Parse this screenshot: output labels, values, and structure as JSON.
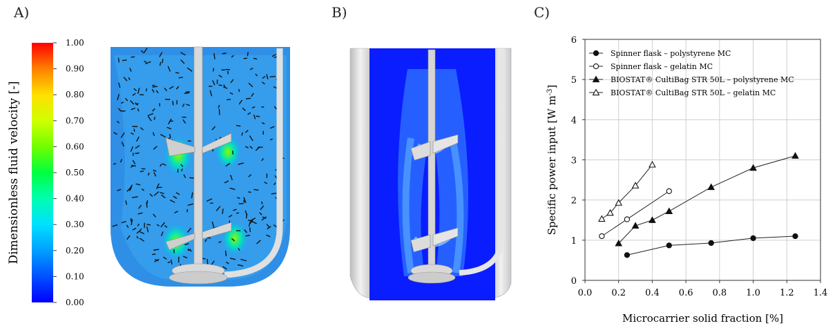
{
  "panels": {
    "a_label": "A)",
    "b_label": "B)",
    "c_label": "C)"
  },
  "colorbar": {
    "title": "Dimensionless fluid velocity [-]",
    "ticks": [
      "1.00",
      "0.90",
      "0.80",
      "0.70",
      "0.60",
      "0.50",
      "0.40",
      "0.30",
      "0.20",
      "0.10",
      "0.00"
    ],
    "colors": [
      "#0000ff",
      "#0050ff",
      "#00a0ff",
      "#00e0ff",
      "#00ffb0",
      "#00ff40",
      "#70ff00",
      "#d0ff00",
      "#ffe000",
      "#ff8000",
      "#ff0000"
    ]
  },
  "chart_data": {
    "type": "line",
    "xlabel": "Microcarrier solid fraction [%]",
    "ylabel": "Specific power input [W m",
    "ylabel_sup": "-3",
    "ylabel_close": "]",
    "xlim": [
      0.0,
      1.4
    ],
    "ylim": [
      0,
      6
    ],
    "xticks": [
      "0.0",
      "0.2",
      "0.4",
      "0.6",
      "0.8",
      "1.0",
      "1.2",
      "1.4"
    ],
    "yticks": [
      "0",
      "1",
      "2",
      "3",
      "4",
      "5",
      "6"
    ],
    "grid": true,
    "legend_position": "top-left",
    "series": [
      {
        "name": "Spinner flask – polystyrene MC",
        "marker": "circle-filled",
        "x": [
          0.25,
          0.5,
          0.75,
          1.0,
          1.25
        ],
        "y": [
          0.63,
          0.87,
          0.93,
          1.05,
          1.1
        ]
      },
      {
        "name": "Spinner flask – gelatin MC",
        "marker": "circle-open",
        "x": [
          0.1,
          0.25,
          0.5
        ],
        "y": [
          1.1,
          1.52,
          2.22
        ]
      },
      {
        "name": "BIOSTAT® CultiBag STR 50L – polystyrene MC",
        "marker": "triangle-filled",
        "x": [
          0.2,
          0.3,
          0.4,
          0.5,
          0.75,
          1.0,
          1.25
        ],
        "y": [
          0.92,
          1.36,
          1.5,
          1.72,
          2.32,
          2.8,
          3.1
        ]
      },
      {
        "name": "BIOSTAT® CultiBag STR 50L – gelatin MC",
        "marker": "triangle-open",
        "x": [
          0.1,
          0.15,
          0.2,
          0.3,
          0.4
        ],
        "y": [
          1.53,
          1.68,
          1.93,
          2.36,
          2.88
        ]
      }
    ]
  }
}
